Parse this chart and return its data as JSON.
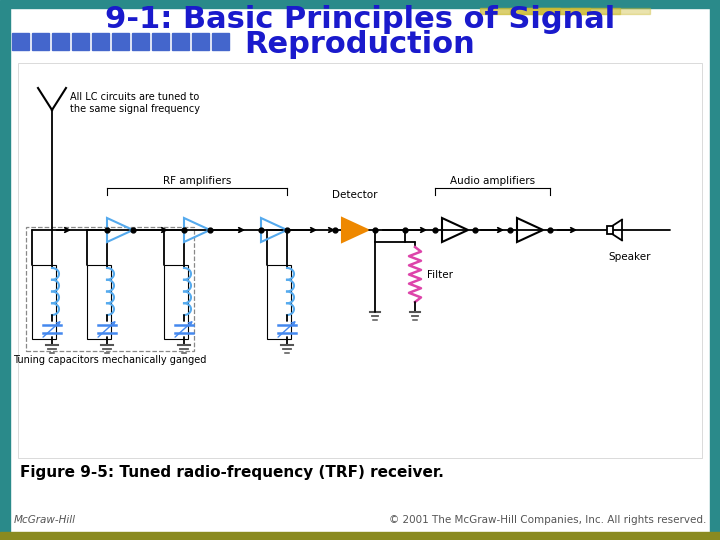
{
  "title_line1": "9-1: Basic Principles of Signal",
  "title_line2": "Reproduction",
  "title_color": "#1a1acc",
  "title_fontsize": 22,
  "caption": "Figure 9-5: Tuned radio-frequency (TRF) receiver.",
  "caption_fontsize": 11,
  "footer_left": "McGraw-Hill",
  "footer_right": "© 2001 The McGraw-Hill Companies, Inc. All rights reserved.",
  "footer_fontsize": 7.5,
  "bg_color": "#ffffff",
  "border_left_color": "#2a8a8a",
  "border_bottom_color": "#8a8a20",
  "border_top_color": "#2a8a8a",
  "border_right_color": "#2a8a8a",
  "blue_sq_color": "#4466cc",
  "gold_stripe_color": "#ccbb33",
  "label_rf": "RF amplifiers",
  "label_audio": "Audio amplifiers",
  "label_detector": "Detector",
  "label_filter": "Filter",
  "label_speaker": "Speaker",
  "label_antenna": "All LC circuits are tuned to\nthe same signal frequency",
  "label_ganged": "Tuning capacitors mechanically ganged",
  "rf_amp_color": "#55aaee",
  "audio_amp_color": "#000000",
  "detector_color": "#ee8800",
  "filter_color": "#dd44aa",
  "cap_color": "#4488ee",
  "ind_color": "#55aaee",
  "wire_color": "#000000",
  "ground_color": "#666666",
  "diagram_bg": "#f8f8f8",
  "diagram_border": "#cccccc"
}
